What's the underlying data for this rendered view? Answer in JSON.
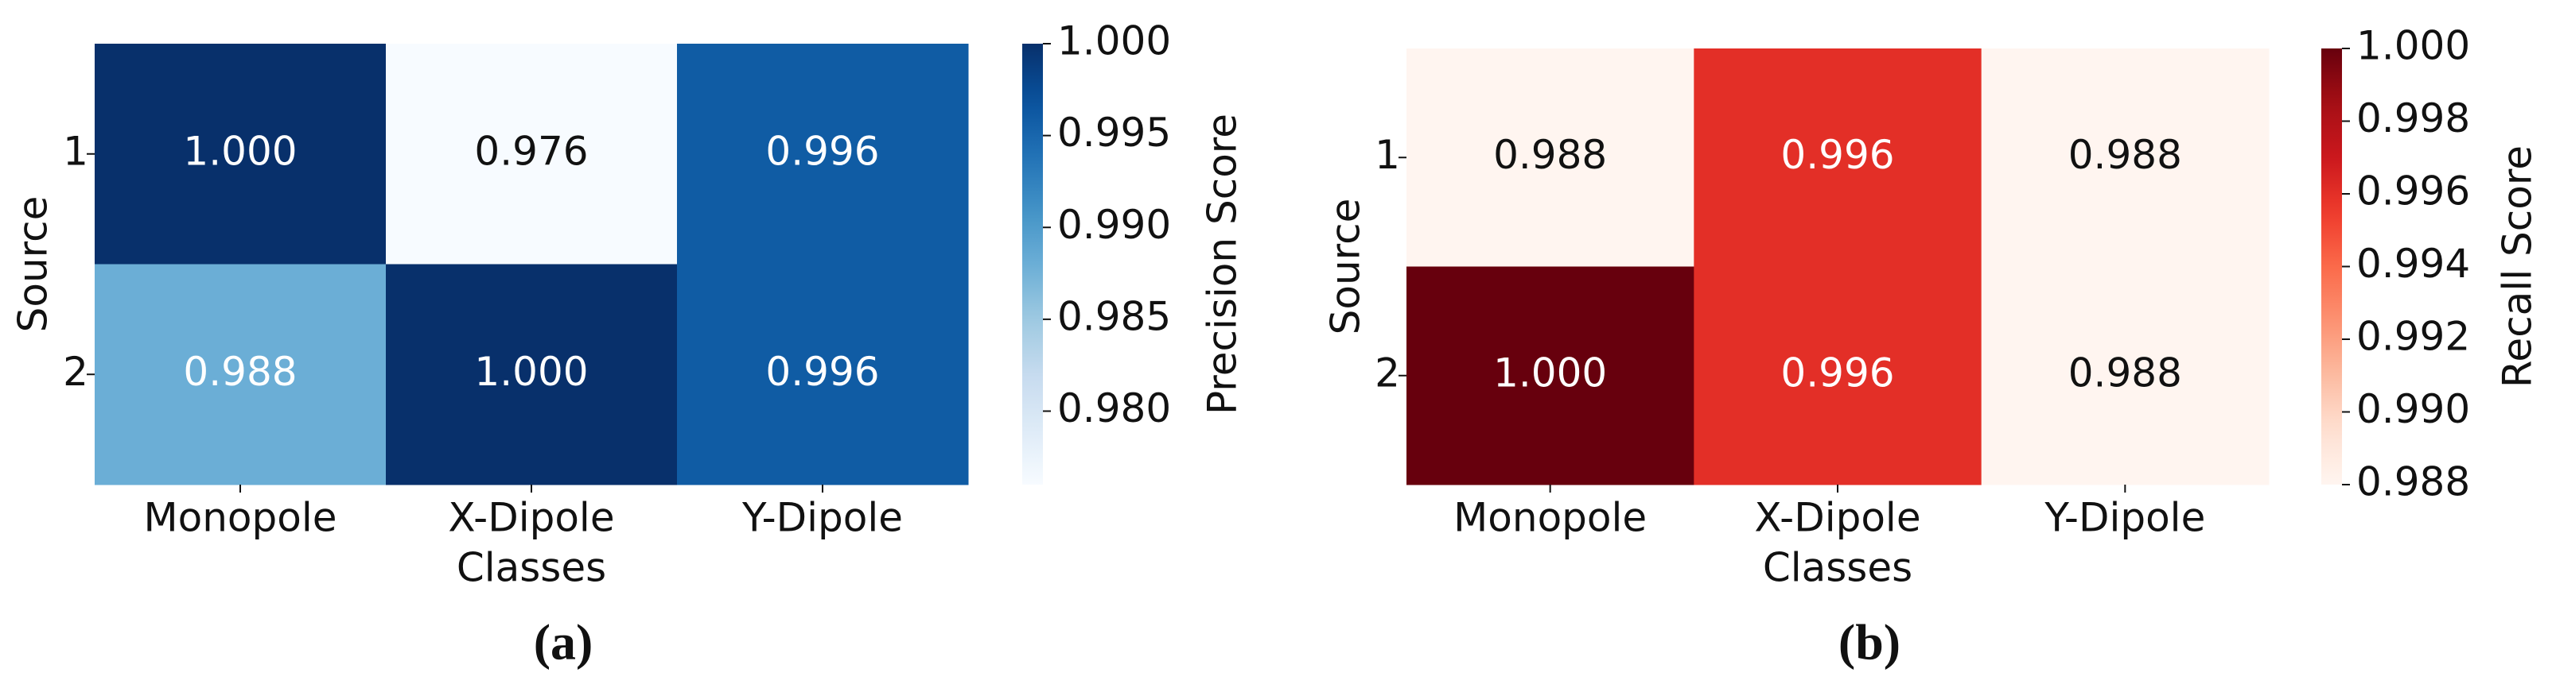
{
  "chart_data": [
    {
      "type": "heatmap",
      "caption": "(a)",
      "x_label": "Classes",
      "y_label": "Source",
      "x_categories": [
        "Monopole",
        "X-Dipole",
        "Y-Dipole"
      ],
      "y_categories": [
        "1",
        "2"
      ],
      "values": [
        [
          1.0,
          0.976,
          0.996
        ],
        [
          0.988,
          1.0,
          0.996
        ]
      ],
      "value_labels": [
        [
          "1.000",
          "0.976",
          "0.996"
        ],
        [
          "0.988",
          "1.000",
          "0.996"
        ]
      ],
      "colormap": "Blues",
      "colorbar_label": "Precision Score",
      "clim": [
        0.976,
        1.0
      ],
      "colorbar_ticks": [
        {
          "value": 0.98,
          "label": "0.980"
        },
        {
          "value": 0.985,
          "label": "0.985"
        },
        {
          "value": 0.99,
          "label": "0.990"
        },
        {
          "value": 0.995,
          "label": "0.995"
        },
        {
          "value": 1.0,
          "label": "1.000"
        }
      ]
    },
    {
      "type": "heatmap",
      "caption": "(b)",
      "x_label": "Classes",
      "y_label": "Source",
      "x_categories": [
        "Monopole",
        "X-Dipole",
        "Y-Dipole"
      ],
      "y_categories": [
        "1",
        "2"
      ],
      "values": [
        [
          0.988,
          0.996,
          0.988
        ],
        [
          1.0,
          0.996,
          0.988
        ]
      ],
      "value_labels": [
        [
          "0.988",
          "0.996",
          "0.988"
        ],
        [
          "1.000",
          "0.996",
          "0.988"
        ]
      ],
      "colormap": "Reds",
      "colorbar_label": "Recall Score",
      "clim": [
        0.988,
        1.0
      ],
      "colorbar_ticks": [
        {
          "value": 0.988,
          "label": "0.988"
        },
        {
          "value": 0.99,
          "label": "0.990"
        },
        {
          "value": 0.992,
          "label": "0.992"
        },
        {
          "value": 0.994,
          "label": "0.994"
        },
        {
          "value": 0.996,
          "label": "0.996"
        },
        {
          "value": 0.998,
          "label": "0.998"
        },
        {
          "value": 1.0,
          "label": "1.000"
        }
      ]
    }
  ]
}
